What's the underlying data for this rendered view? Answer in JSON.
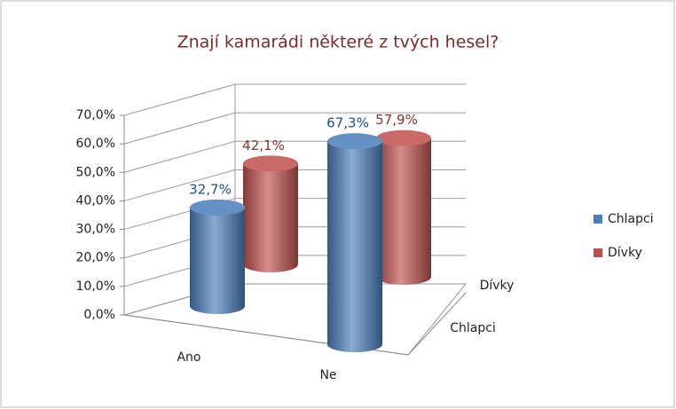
{
  "chart_data": {
    "type": "bar3d",
    "title": "Znají kamarádi některé z tvých hesel?",
    "categories": [
      "Ano",
      "Ne"
    ],
    "series": [
      {
        "name": "Chlapci",
        "color": "#4a7ebb",
        "values": [
          32.7,
          67.3
        ],
        "value_labels": [
          "32,7%",
          "67,3%"
        ]
      },
      {
        "name": "Dívky",
        "color": "#c0504d",
        "values": [
          42.1,
          57.9
        ],
        "value_labels": [
          "42,1%",
          "57,9%"
        ]
      }
    ],
    "ylim": [
      0,
      70
    ],
    "yticks": [
      {
        "value": 0,
        "label": "0,0%"
      },
      {
        "value": 10,
        "label": "10,0%"
      },
      {
        "value": 20,
        "label": "20,0%"
      },
      {
        "value": 30,
        "label": "30,0%"
      },
      {
        "value": 40,
        "label": "40,0%"
      },
      {
        "value": 50,
        "label": "50,0%"
      },
      {
        "value": 60,
        "label": "60,0%"
      },
      {
        "value": 70,
        "label": "70,0%"
      }
    ],
    "grid": true,
    "legend": "right"
  }
}
